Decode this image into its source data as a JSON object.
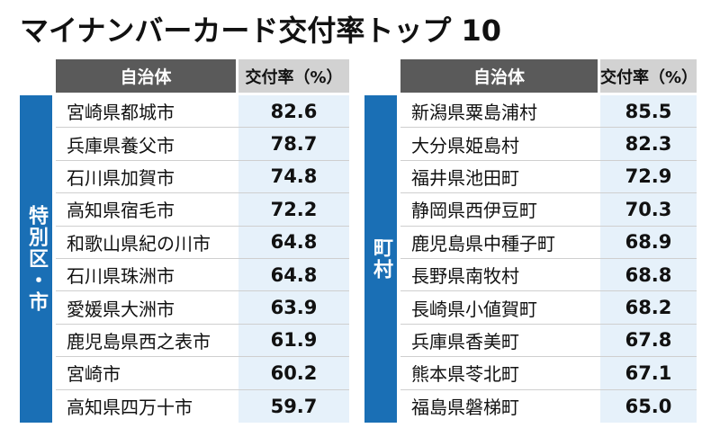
{
  "title": "マイナンバーカード交付率トップ 10",
  "header": {
    "name": "自治体",
    "rate": "交付率（%）"
  },
  "colors": {
    "side_band": "#1a6fb5",
    "header_dark": "#5a5a5a",
    "header_light": "#d2d2d2",
    "rate_bg": "#e6f1fa"
  },
  "left": {
    "category": "特別区・市",
    "rows": [
      {
        "name": "宮崎県都城市",
        "rate": "82.6"
      },
      {
        "name": "兵庫県養父市",
        "rate": "78.7"
      },
      {
        "name": "石川県加賀市",
        "rate": "74.8"
      },
      {
        "name": "高知県宿毛市",
        "rate": "72.2"
      },
      {
        "name": "和歌山県紀の川市",
        "rate": "64.8"
      },
      {
        "name": "石川県珠洲市",
        "rate": "64.8"
      },
      {
        "name": "愛媛県大洲市",
        "rate": "63.9"
      },
      {
        "name": "鹿児島県西之表市",
        "rate": "61.9"
      },
      {
        "name": "宮崎市",
        "rate": "60.2"
      },
      {
        "name": "高知県四万十市",
        "rate": "59.7"
      }
    ]
  },
  "right": {
    "category": "町村",
    "rows": [
      {
        "name": "新潟県粟島浦村",
        "rate": "85.5"
      },
      {
        "name": "大分県姫島村",
        "rate": "82.3"
      },
      {
        "name": "福井県池田町",
        "rate": "72.9"
      },
      {
        "name": "静岡県西伊豆町",
        "rate": "70.3"
      },
      {
        "name": "鹿児島県中種子町",
        "rate": "68.9"
      },
      {
        "name": "長野県南牧村",
        "rate": "68.8"
      },
      {
        "name": "長崎県小値賀町",
        "rate": "68.2"
      },
      {
        "name": "兵庫県香美町",
        "rate": "67.8"
      },
      {
        "name": "熊本県苓北町",
        "rate": "67.1"
      },
      {
        "name": "福島県磐梯町",
        "rate": "65.0"
      }
    ]
  }
}
